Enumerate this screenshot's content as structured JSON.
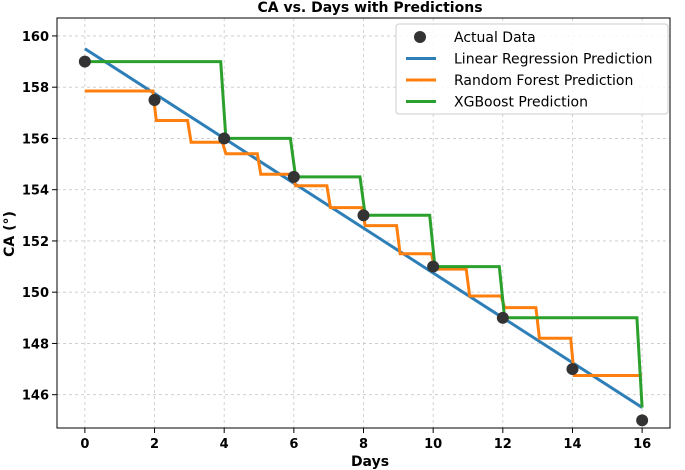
{
  "chart_data": {
    "type": "line",
    "title": "CA vs. Days with Predictions",
    "xlabel": "Days",
    "ylabel": "CA (°)",
    "xlim": [
      -0.8,
      16.8
    ],
    "ylim": [
      144.7,
      160.7
    ],
    "xticks": [
      0,
      2,
      4,
      6,
      8,
      10,
      12,
      14,
      16
    ],
    "yticks": [
      146,
      148,
      150,
      152,
      154,
      156,
      158,
      160
    ],
    "grid": true,
    "legend_position": "top-right",
    "series": [
      {
        "name": "Actual Data",
        "kind": "scatter",
        "color": "#333333",
        "x": [
          0,
          2,
          4,
          6,
          8,
          10,
          12,
          14,
          16
        ],
        "y": [
          159,
          157.5,
          156,
          154.5,
          153,
          151,
          149,
          147,
          145
        ]
      },
      {
        "name": "Linear Regression Prediction",
        "kind": "line",
        "color": "#2e7fb8",
        "x": [
          0,
          16
        ],
        "y": [
          159.5,
          145.5
        ]
      },
      {
        "name": "Random Forest Prediction",
        "kind": "line",
        "color": "#ff7f0e",
        "x": [
          0,
          1.95,
          2.05,
          2.95,
          3.05,
          3.95,
          4.05,
          4.95,
          5.05,
          5.95,
          6.05,
          6.95,
          7.05,
          7.95,
          8.05,
          8.95,
          9.05,
          9.95,
          10.05,
          10.95,
          11.05,
          11.95,
          12.05,
          12.95,
          13.05,
          13.95,
          14.05,
          16
        ],
        "y": [
          157.85,
          157.85,
          156.7,
          156.7,
          155.85,
          155.85,
          155.4,
          155.4,
          154.6,
          154.6,
          154.15,
          154.15,
          153.3,
          153.3,
          152.6,
          152.6,
          151.5,
          151.5,
          150.9,
          150.9,
          149.85,
          149.85,
          149.4,
          149.4,
          148.2,
          148.2,
          146.75,
          146.75
        ]
      },
      {
        "name": "XGBoost Prediction",
        "kind": "line",
        "color": "#2ca02c",
        "x": [
          0,
          3.9,
          4.05,
          5.9,
          6.05,
          7.9,
          8.05,
          9.9,
          10.05,
          11.9,
          12.05,
          15.85,
          16
        ],
        "y": [
          159,
          159,
          156,
          156,
          154.5,
          154.5,
          153,
          153,
          151,
          151,
          149,
          149,
          145.5
        ]
      }
    ]
  }
}
